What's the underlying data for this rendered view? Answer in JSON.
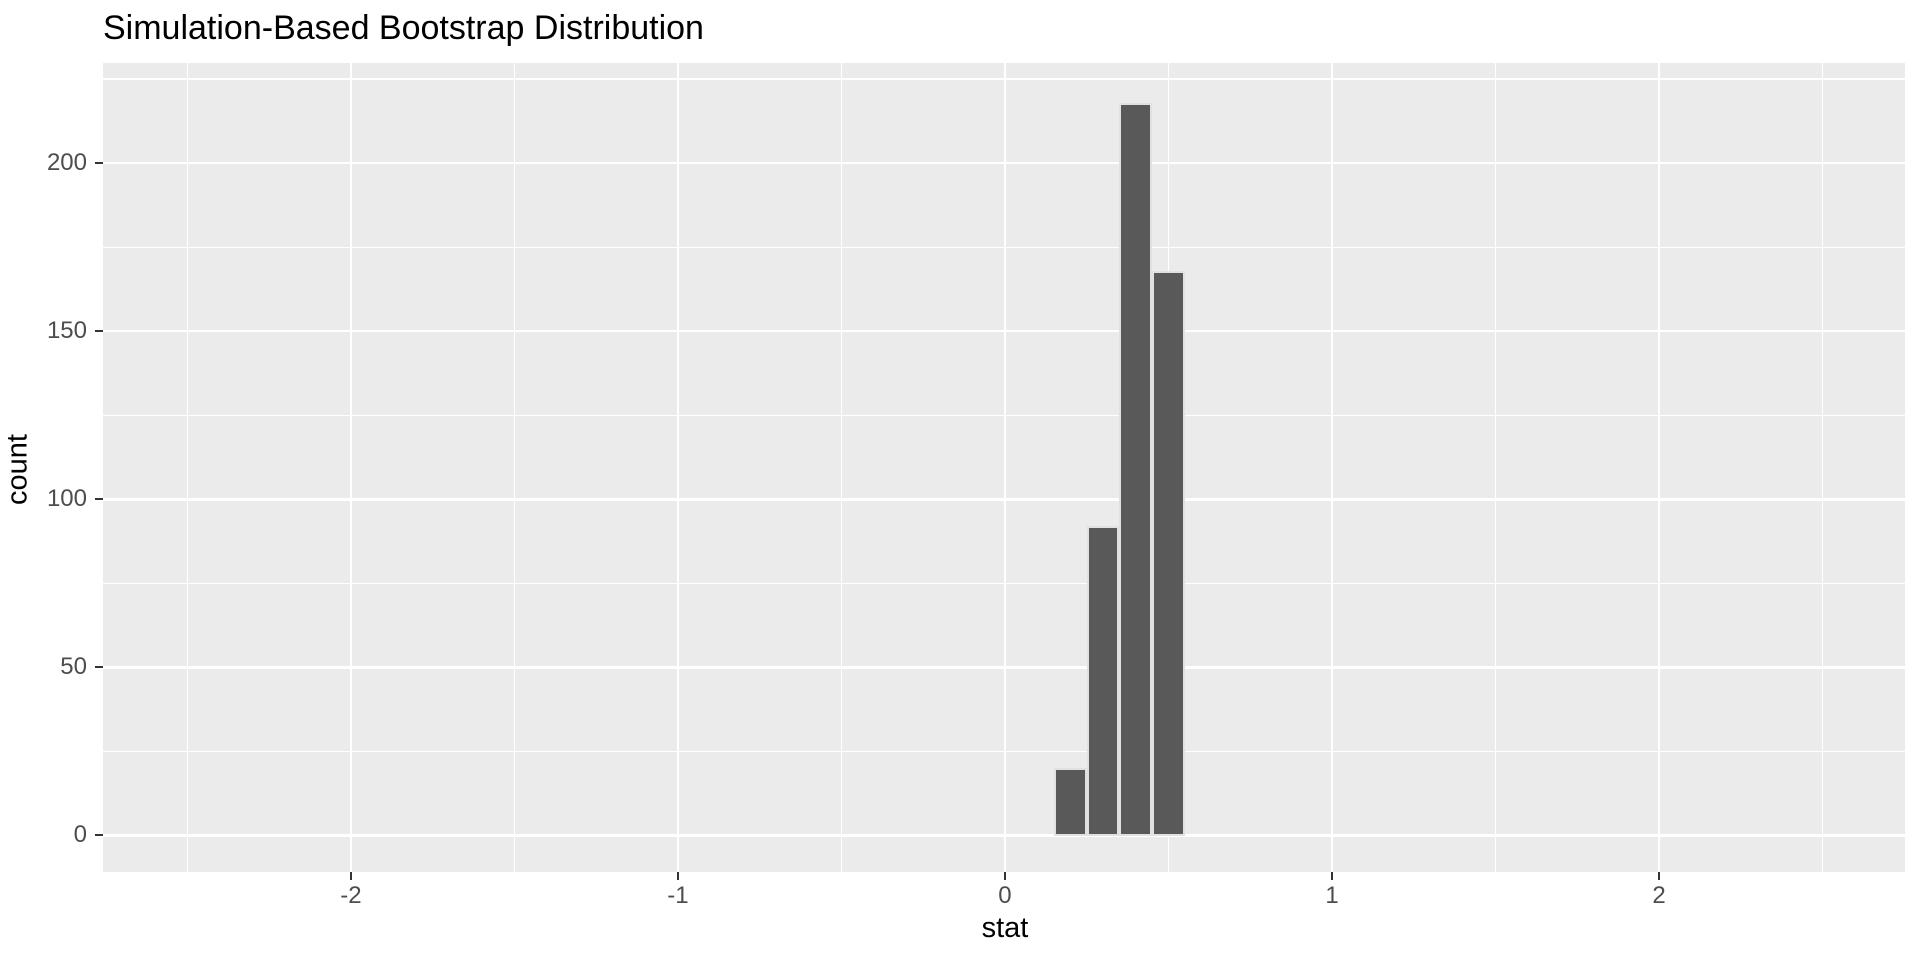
{
  "chart_data": {
    "type": "bar",
    "subtype": "histogram",
    "title": "Simulation-Based Bootstrap Distribution",
    "xlabel": "stat",
    "ylabel": "count",
    "bins": [
      {
        "x_left": 0.15,
        "x_right": 0.25,
        "count": 20
      },
      {
        "x_left": 0.25,
        "x_right": 0.35,
        "count": 92
      },
      {
        "x_left": 0.35,
        "x_right": 0.45,
        "count": 218
      },
      {
        "x_left": 0.45,
        "x_right": 0.55,
        "count": 168
      }
    ],
    "bin_width": 0.1,
    "x_ticks": [
      -2,
      -1,
      0,
      1,
      2
    ],
    "y_ticks": [
      0,
      50,
      100,
      150,
      200
    ],
    "x_minor_gridlines": [
      -2.5,
      -1.5,
      -0.5,
      0.5,
      1.5,
      2.5
    ],
    "y_minor_gridlines": [
      25,
      75,
      125,
      175,
      225
    ],
    "xlim": [
      -2.758,
      2.752
    ],
    "ylim": [
      -10.9,
      229.8
    ],
    "grid": true,
    "legend": "none",
    "colors": {
      "bar_fill": "#595959",
      "panel_background": "#EBEBEB",
      "gridline": "#FFFFFF",
      "tick_mark": "#333333",
      "tick_label": "#4D4D4D",
      "title_text": "#000000",
      "page_background": "#FFFFFF"
    }
  }
}
